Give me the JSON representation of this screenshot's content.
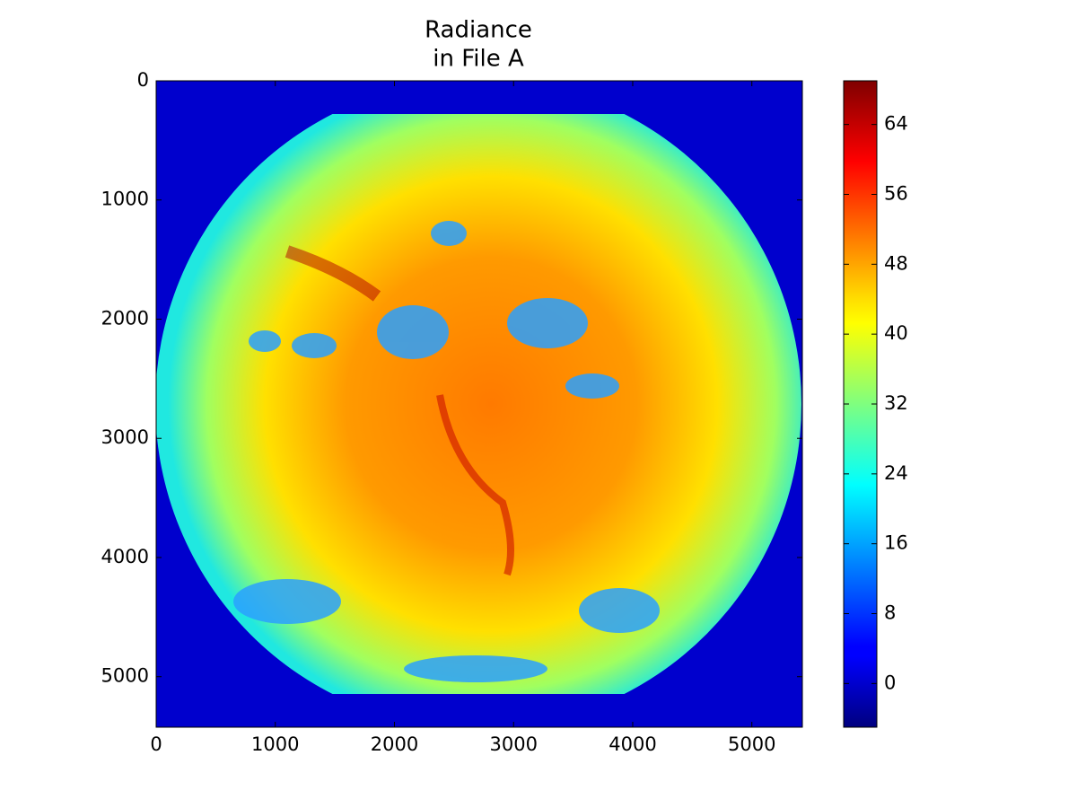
{
  "chart_data": {
    "type": "image",
    "title_lines": [
      "Radiance",
      "in File A"
    ],
    "colormap": "jet",
    "xlim": [
      0,
      5424
    ],
    "xticks": [
      0,
      1000,
      2000,
      3000,
      4000,
      5000
    ],
    "ylim": [
      5424,
      0
    ],
    "yticks": [
      0,
      1000,
      2000,
      3000,
      4000,
      5000
    ],
    "colorbar": {
      "clim": [
        -5,
        69
      ],
      "ticks": [
        0,
        8,
        16,
        24,
        32,
        40,
        48,
        56,
        64
      ]
    }
  }
}
